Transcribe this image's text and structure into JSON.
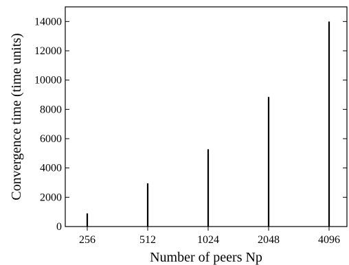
{
  "chart_data": {
    "type": "bar",
    "title": "",
    "xlabel": "Number of peers Np",
    "ylabel": "Convergence time (time units)",
    "categories": [
      "256",
      "512",
      "1024",
      "2048",
      "4096"
    ],
    "values": [
      900,
      2950,
      5280,
      8850,
      14000
    ],
    "ylim": [
      0,
      15000
    ],
    "yticks": [
      0,
      2000,
      4000,
      6000,
      8000,
      10000,
      12000,
      14000
    ],
    "grid": false,
    "legend": "none",
    "bar_color": "#000000"
  }
}
